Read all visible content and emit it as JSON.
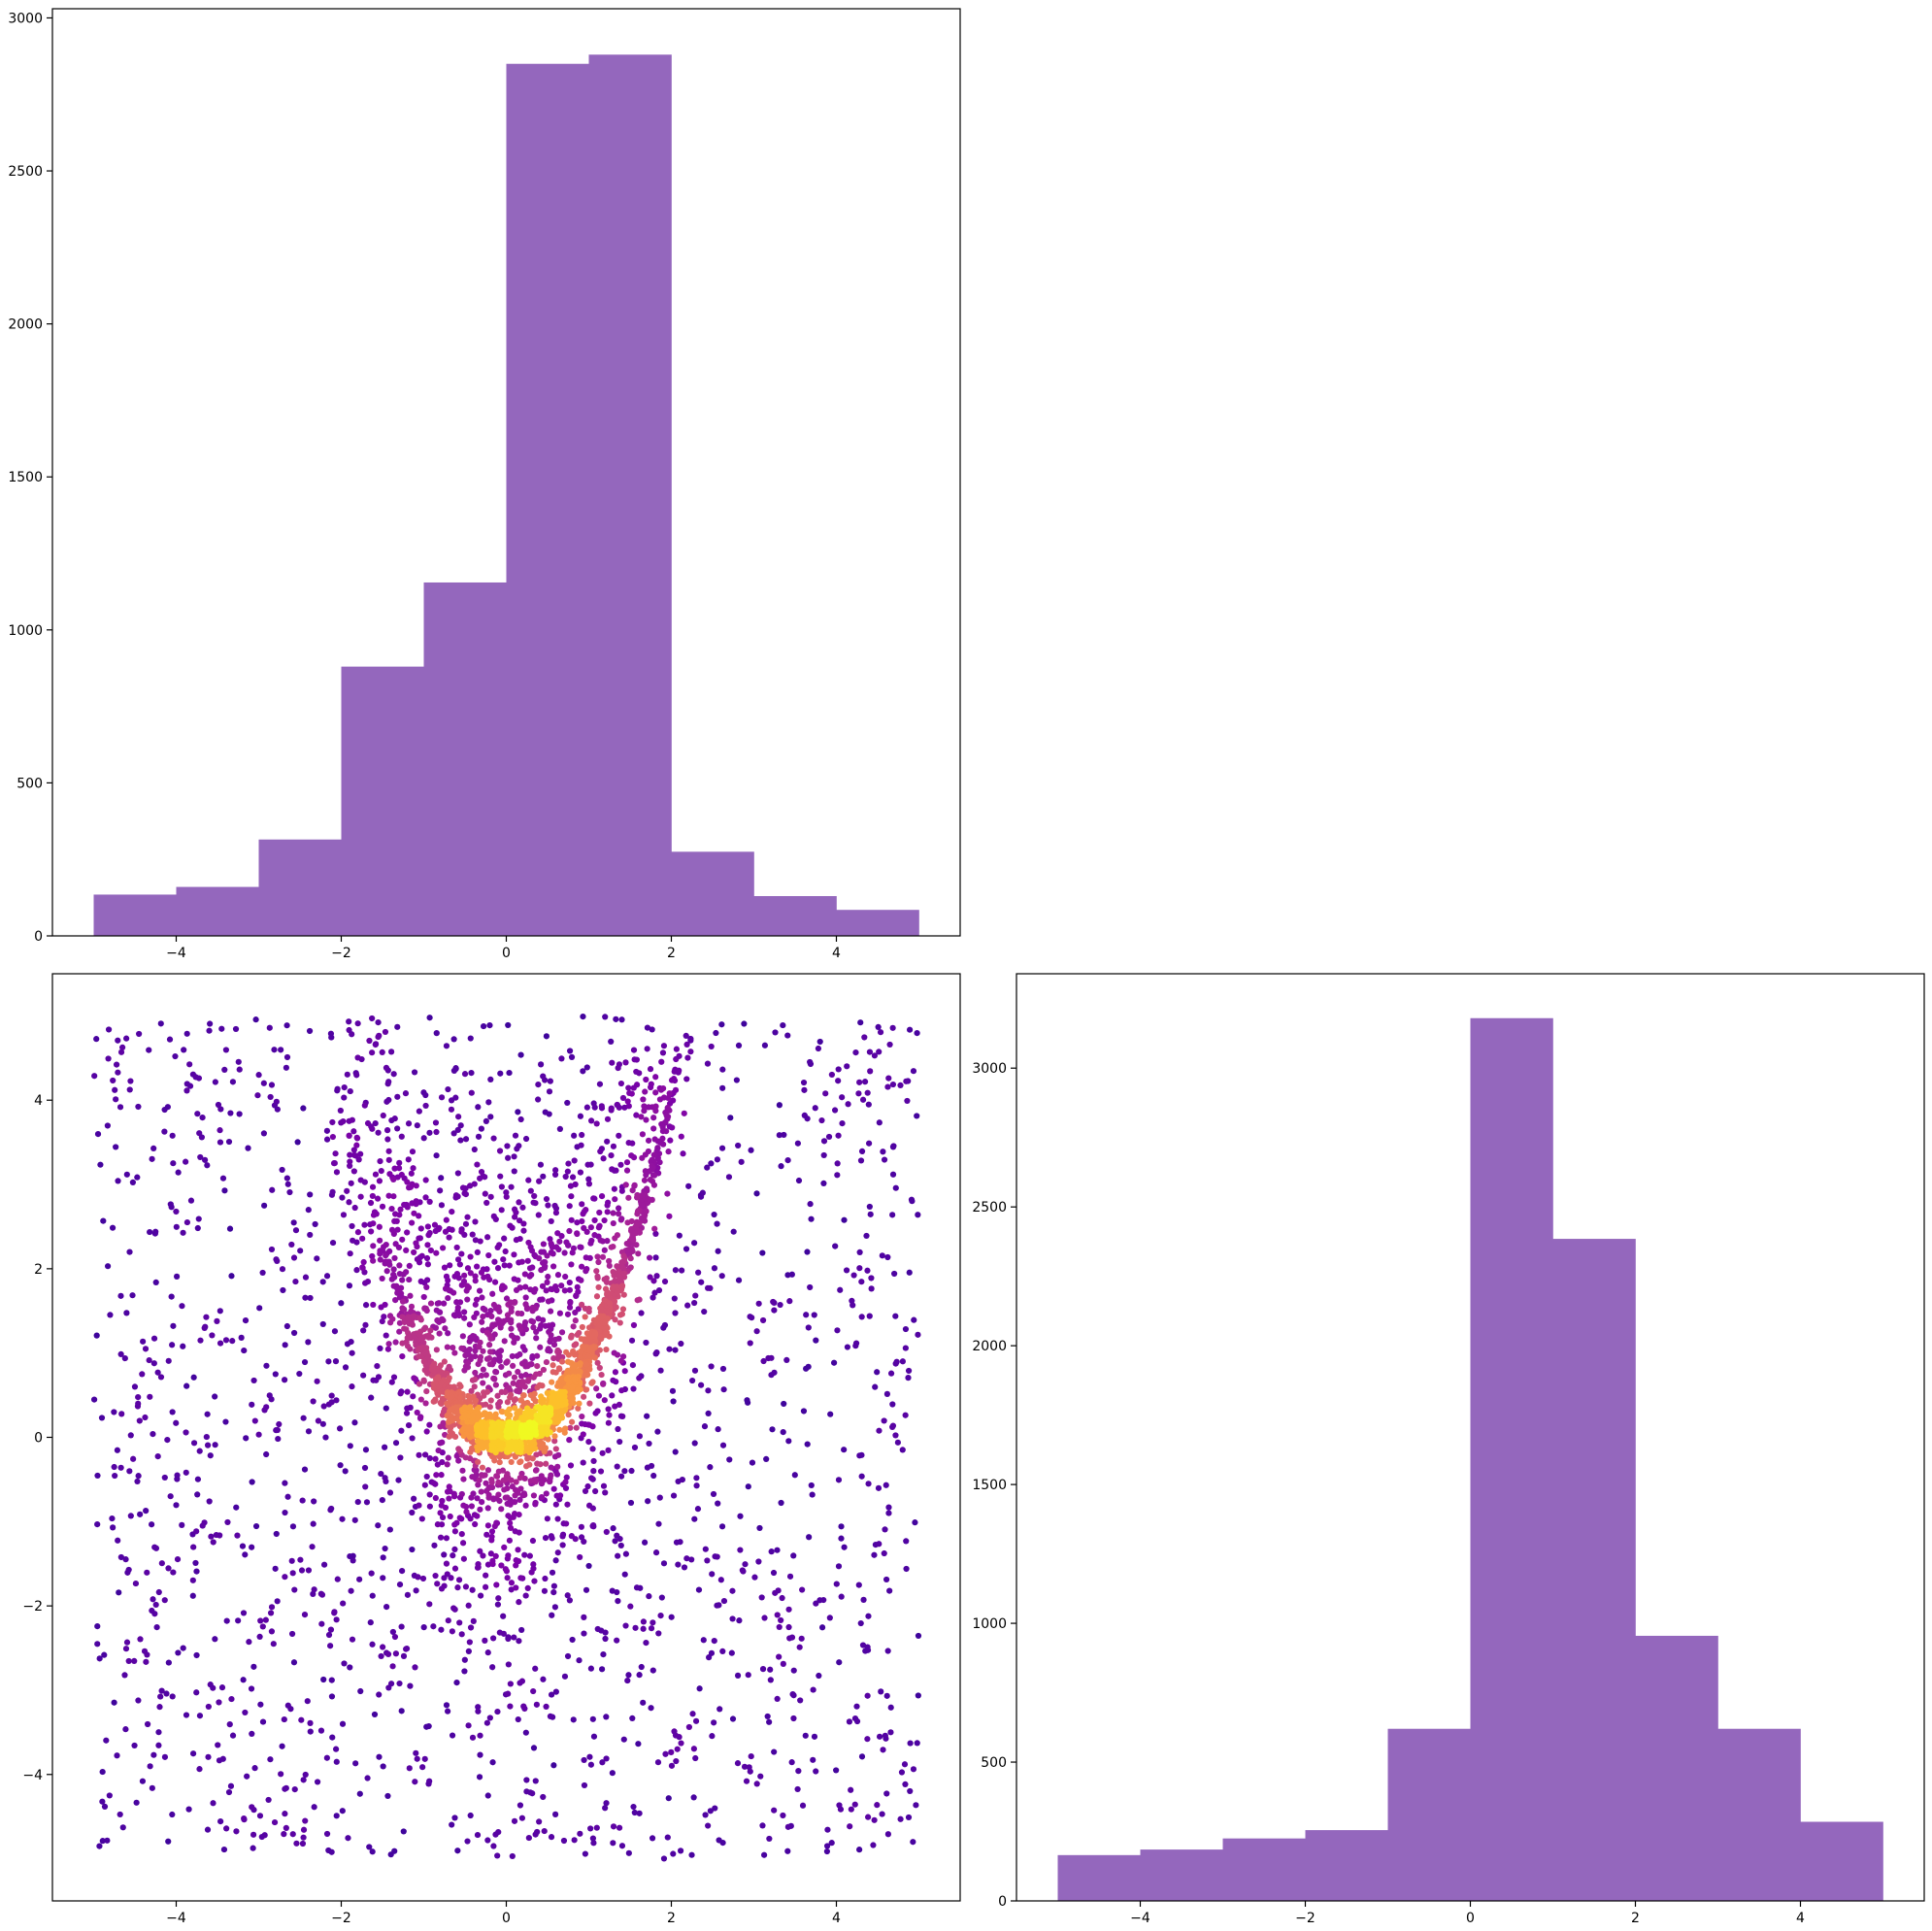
{
  "colors": {
    "bar": "#9467bd",
    "scatter_colormap": "plasma"
  },
  "chart_data": [
    {
      "panel": "top-left",
      "type": "bar",
      "bin_edges": [
        -5,
        -4,
        -3,
        -2,
        -1,
        0,
        1,
        2,
        3,
        4,
        5
      ],
      "values": [
        135,
        160,
        315,
        880,
        1155,
        2850,
        2880,
        275,
        130,
        85
      ],
      "xlim": [
        -5.5,
        5.5
      ],
      "ylim": [
        0,
        3030
      ],
      "xticks": [
        -4,
        -2,
        0,
        2,
        4
      ],
      "xtick_labels": [
        "−4",
        "−2",
        "0",
        "2",
        "4"
      ],
      "yticks": [
        0,
        500,
        1000,
        1500,
        2000,
        2500,
        3000
      ],
      "ytick_labels": [
        "0",
        "500",
        "1000",
        "1500",
        "2000",
        "2500",
        "3000"
      ],
      "title": "",
      "xlabel": "",
      "ylabel": "",
      "grid": false
    },
    {
      "panel": "bottom-left",
      "type": "scatter",
      "description_points": "uniform background on [-5,5]x[-5,5] plus a parabolic ridge y = x^2 for x in [-2.1, 2.1]; density mapped to colour",
      "xlim": [
        -5.5,
        5.5
      ],
      "ylim": [
        -5.5,
        5.5
      ],
      "xticks": [
        -4,
        -2,
        0,
        2,
        4
      ],
      "xtick_labels": [
        "−4",
        "−2",
        "0",
        "2",
        "4"
      ],
      "yticks": [
        -4,
        -2,
        0,
        2,
        4
      ],
      "ytick_labels": [
        "−4",
        "−2",
        "0",
        "2",
        "4"
      ],
      "title": "",
      "xlabel": "",
      "ylabel": "",
      "grid": false
    },
    {
      "panel": "bottom-right",
      "type": "bar",
      "bin_edges": [
        -5,
        -4,
        -3,
        -2,
        -1,
        0,
        1,
        2,
        3,
        4,
        5
      ],
      "values": [
        165,
        185,
        225,
        255,
        620,
        3180,
        2385,
        955,
        620,
        285
      ],
      "xlim": [
        -5.5,
        5.5
      ],
      "ylim": [
        0,
        3340
      ],
      "xticks": [
        -4,
        -2,
        0,
        2,
        4
      ],
      "xtick_labels": [
        "−4",
        "−2",
        "0",
        "2",
        "4"
      ],
      "yticks": [
        0,
        500,
        1000,
        1500,
        2000,
        2500,
        3000
      ],
      "ytick_labels": [
        "0",
        "500",
        "1000",
        "1500",
        "2000",
        "2500",
        "3000"
      ],
      "title": "",
      "xlabel": "",
      "ylabel": "",
      "grid": false
    }
  ]
}
